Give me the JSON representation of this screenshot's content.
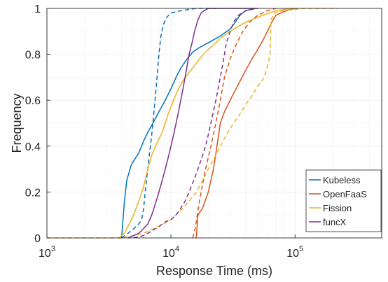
{
  "chart_data": {
    "type": "line",
    "title": "",
    "xlabel": "Response Time (ms)",
    "ylabel": "Frequency",
    "xscale": "log",
    "xlim": [
      1000,
      500000
    ],
    "ylim": [
      0,
      1
    ],
    "grid": true,
    "legend_position": "bottom-right",
    "x_ticks": [
      {
        "value": 1000,
        "base": "10",
        "exp": "3"
      },
      {
        "value": 10000,
        "base": "10",
        "exp": "4"
      },
      {
        "value": 100000,
        "base": "10",
        "exp": "5"
      }
    ],
    "y_ticks": [
      {
        "value": 0,
        "label": "0"
      },
      {
        "value": 0.2,
        "label": "0.2"
      },
      {
        "value": 0.4,
        "label": "0.4"
      },
      {
        "value": 0.6,
        "label": "0.6"
      },
      {
        "value": 0.8,
        "label": "0.8"
      },
      {
        "value": 1,
        "label": "1"
      }
    ],
    "legend": [
      {
        "name": "Kubeless",
        "color": "#0072BD"
      },
      {
        "name": "OpenFaaS",
        "color": "#D95319"
      },
      {
        "name": "Fission",
        "color": "#EDB120"
      },
      {
        "name": "funcX",
        "color": "#7E2F8E"
      }
    ],
    "series": [
      {
        "name": "Kubeless",
        "variant": "solid",
        "color": "#0072BD",
        "points": [
          [
            4000,
            0
          ],
          [
            4200,
            0.15
          ],
          [
            4400,
            0.25
          ],
          [
            4800,
            0.32
          ],
          [
            5500,
            0.37
          ],
          [
            6000,
            0.42
          ],
          [
            6500,
            0.46
          ],
          [
            7000,
            0.49
          ],
          [
            8000,
            0.55
          ],
          [
            9000,
            0.6
          ],
          [
            10000,
            0.65
          ],
          [
            11000,
            0.7
          ],
          [
            12000,
            0.74
          ],
          [
            13500,
            0.78
          ],
          [
            15000,
            0.81
          ],
          [
            17000,
            0.83
          ],
          [
            20000,
            0.85
          ],
          [
            25000,
            0.88
          ],
          [
            30000,
            0.91
          ],
          [
            33000,
            0.94
          ],
          [
            36000,
            0.97
          ],
          [
            40000,
            0.99
          ],
          [
            47000,
            1.0
          ]
        ]
      },
      {
        "name": "Kubeless",
        "variant": "dashed",
        "color": "#0072BD",
        "points": [
          [
            4000,
            0
          ],
          [
            4500,
            0.02
          ],
          [
            5000,
            0.04
          ],
          [
            5500,
            0.06
          ],
          [
            5800,
            0.08
          ],
          [
            6000,
            0.12
          ],
          [
            6200,
            0.2
          ],
          [
            6500,
            0.3
          ],
          [
            7000,
            0.45
          ],
          [
            7500,
            0.62
          ],
          [
            8000,
            0.8
          ],
          [
            8300,
            0.88
          ],
          [
            8700,
            0.93
          ],
          [
            9200,
            0.96
          ],
          [
            10000,
            0.98
          ],
          [
            12000,
            0.99
          ],
          [
            16000,
            1.0
          ],
          [
            24000,
            1.0
          ]
        ]
      },
      {
        "name": "OpenFaaS",
        "variant": "solid",
        "color": "#D95319",
        "points": [
          [
            16000,
            0
          ],
          [
            16500,
            0.1
          ],
          [
            18000,
            0.13
          ],
          [
            20000,
            0.2
          ],
          [
            22000,
            0.3
          ],
          [
            23500,
            0.4
          ],
          [
            25000,
            0.5
          ],
          [
            27000,
            0.55
          ],
          [
            30000,
            0.6
          ],
          [
            35000,
            0.67
          ],
          [
            40000,
            0.73
          ],
          [
            45000,
            0.78
          ],
          [
            50000,
            0.82
          ],
          [
            55000,
            0.86
          ],
          [
            60000,
            0.9
          ],
          [
            65000,
            0.94
          ],
          [
            70000,
            0.97
          ],
          [
            85000,
            0.99
          ],
          [
            100000,
            1.0
          ]
        ]
      },
      {
        "name": "OpenFaaS",
        "variant": "dashed",
        "color": "#D95319",
        "points": [
          [
            15000,
            0
          ],
          [
            15800,
            0.05
          ],
          [
            16500,
            0.12
          ],
          [
            17500,
            0.2
          ],
          [
            19000,
            0.3
          ],
          [
            21000,
            0.4
          ],
          [
            23000,
            0.5
          ],
          [
            25000,
            0.6
          ],
          [
            27000,
            0.7
          ],
          [
            30000,
            0.78
          ],
          [
            34000,
            0.85
          ],
          [
            38000,
            0.9
          ],
          [
            43000,
            0.94
          ],
          [
            50000,
            0.97
          ],
          [
            60000,
            0.99
          ],
          [
            70000,
            1.0
          ]
        ]
      },
      {
        "name": "Fission",
        "variant": "solid",
        "color": "#EDB120",
        "points": [
          [
            3800,
            0
          ],
          [
            4200,
            0.02
          ],
          [
            4600,
            0.06
          ],
          [
            5000,
            0.1
          ],
          [
            5500,
            0.16
          ],
          [
            6000,
            0.22
          ],
          [
            6500,
            0.3
          ],
          [
            7000,
            0.36
          ],
          [
            7500,
            0.4
          ],
          [
            8500,
            0.46
          ],
          [
            9500,
            0.54
          ],
          [
            10500,
            0.6
          ],
          [
            11500,
            0.65
          ],
          [
            13000,
            0.7
          ],
          [
            15000,
            0.74
          ],
          [
            17000,
            0.78
          ],
          [
            19000,
            0.81
          ],
          [
            22000,
            0.84
          ],
          [
            25000,
            0.87
          ],
          [
            30000,
            0.9
          ],
          [
            40000,
            0.94
          ],
          [
            55000,
            0.97
          ],
          [
            70000,
            0.99
          ],
          [
            95000,
            1.0
          ],
          [
            105000,
            1.0
          ]
        ]
      },
      {
        "name": "Fission",
        "variant": "dashed",
        "color": "#EDB120",
        "points": [
          [
            1000,
            0
          ],
          [
            3000,
            0
          ],
          [
            4000,
            0
          ],
          [
            6000,
            0.02
          ],
          [
            8000,
            0.05
          ],
          [
            10000,
            0.08
          ],
          [
            12000,
            0.12
          ],
          [
            14000,
            0.16
          ],
          [
            16000,
            0.2
          ],
          [
            18000,
            0.25
          ],
          [
            20000,
            0.3
          ],
          [
            23000,
            0.36
          ],
          [
            25000,
            0.4
          ],
          [
            28000,
            0.45
          ],
          [
            32000,
            0.5
          ],
          [
            36000,
            0.54
          ],
          [
            40000,
            0.58
          ],
          [
            45000,
            0.62
          ],
          [
            50000,
            0.66
          ],
          [
            55000,
            0.69
          ],
          [
            58000,
            0.72
          ],
          [
            60000,
            0.75
          ],
          [
            62000,
            0.78
          ],
          [
            63000,
            0.8
          ],
          [
            64000,
            0.95
          ],
          [
            68000,
            0.98
          ],
          [
            80000,
            0.99
          ],
          [
            120000,
            1.0
          ],
          [
            220000,
            1.0
          ]
        ]
      },
      {
        "name": "funcX",
        "variant": "solid",
        "color": "#7E2F8E",
        "points": [
          [
            4500,
            0
          ],
          [
            5000,
            0.01
          ],
          [
            5500,
            0.02
          ],
          [
            6000,
            0.04
          ],
          [
            6500,
            0.06
          ],
          [
            7000,
            0.1
          ],
          [
            7500,
            0.15
          ],
          [
            8000,
            0.2
          ],
          [
            8500,
            0.25
          ],
          [
            9000,
            0.3
          ],
          [
            9500,
            0.35
          ],
          [
            10000,
            0.4
          ],
          [
            10500,
            0.45
          ],
          [
            11000,
            0.5
          ],
          [
            11500,
            0.55
          ],
          [
            12000,
            0.6
          ],
          [
            12500,
            0.65
          ],
          [
            13000,
            0.7
          ],
          [
            13500,
            0.75
          ],
          [
            14000,
            0.8
          ],
          [
            14800,
            0.85
          ],
          [
            15500,
            0.9
          ],
          [
            16500,
            0.95
          ],
          [
            17500,
            0.98
          ],
          [
            18500,
            0.99
          ],
          [
            20000,
            1.0
          ],
          [
            50000,
            1.0
          ]
        ]
      },
      {
        "name": "funcX",
        "variant": "dashed",
        "color": "#7E2F8E",
        "points": [
          [
            5000,
            0
          ],
          [
            6000,
            0.01
          ],
          [
            7000,
            0.03
          ],
          [
            8000,
            0.05
          ],
          [
            9000,
            0.07
          ],
          [
            10000,
            0.08
          ],
          [
            11000,
            0.1
          ],
          [
            12000,
            0.13
          ],
          [
            13000,
            0.16
          ],
          [
            14000,
            0.2
          ],
          [
            15000,
            0.24
          ],
          [
            16000,
            0.28
          ],
          [
            17000,
            0.32
          ],
          [
            18000,
            0.36
          ],
          [
            19000,
            0.4
          ],
          [
            20000,
            0.45
          ],
          [
            21000,
            0.5
          ],
          [
            22000,
            0.55
          ],
          [
            23000,
            0.6
          ],
          [
            24000,
            0.65
          ],
          [
            25000,
            0.7
          ],
          [
            26000,
            0.75
          ],
          [
            27000,
            0.8
          ],
          [
            28000,
            0.85
          ],
          [
            30000,
            0.9
          ],
          [
            32000,
            0.94
          ],
          [
            35000,
            0.97
          ],
          [
            40000,
            0.99
          ],
          [
            50000,
            1.0
          ]
        ]
      }
    ]
  }
}
